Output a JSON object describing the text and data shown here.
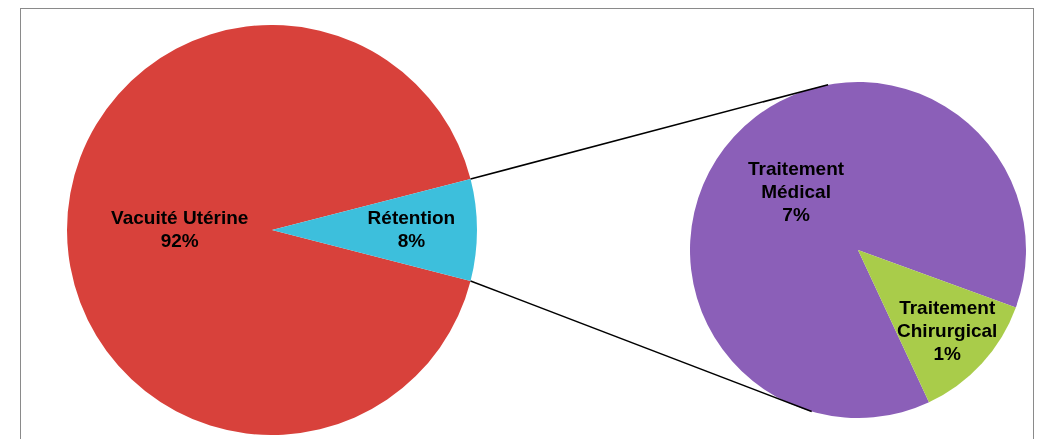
{
  "chart_data": [
    {
      "type": "pie",
      "categories": [
        "Vacuité Utérine",
        "Rétention"
      ],
      "values": [
        92,
        8
      ],
      "value_labels": [
        "92%",
        "8%"
      ],
      "colors": [
        "#d8413b",
        "#3dbfdc"
      ]
    },
    {
      "type": "pie",
      "categories": [
        "Traitement Médical",
        "Traitement Chirurgical"
      ],
      "values": [
        7,
        1
      ],
      "value_labels": [
        "7%",
        "1%"
      ],
      "colors": [
        "#8b5fb8",
        "#a9cc4a"
      ]
    }
  ]
}
